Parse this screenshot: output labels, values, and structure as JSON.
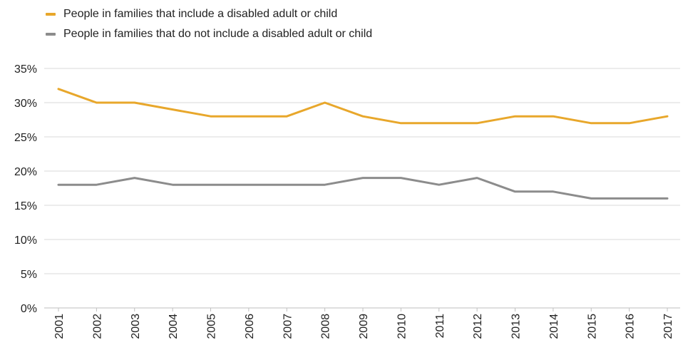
{
  "chart_data": {
    "type": "line",
    "title": "",
    "xlabel": "",
    "ylabel": "",
    "x": [
      "2001",
      "2002",
      "2003",
      "2004",
      "2005",
      "2006",
      "2007",
      "2008",
      "2009",
      "2010",
      "2011",
      "2012",
      "2013",
      "2014",
      "2015",
      "2016",
      "2017"
    ],
    "ylim": [
      0,
      35
    ],
    "y_ticks": [
      "0%",
      "5%",
      "10%",
      "15%",
      "20%",
      "25%",
      "30%",
      "35%"
    ],
    "y_tick_values": [
      0,
      5,
      10,
      15,
      20,
      25,
      30,
      35
    ],
    "grid": "horizontal",
    "legend_position": "top-left",
    "series": [
      {
        "name": "People in families that include a disabled adult or child",
        "color": "#E8A72B",
        "values": [
          32,
          30,
          30,
          29,
          28,
          28,
          28,
          30,
          28,
          27,
          27,
          27,
          28,
          28,
          27,
          27,
          28
        ]
      },
      {
        "name": "People in families that do not include a disabled adult or child",
        "color": "#8C8C8C",
        "values": [
          18,
          18,
          19,
          18,
          18,
          18,
          18,
          18,
          19,
          19,
          18,
          19,
          17,
          17,
          16,
          16,
          16
        ]
      }
    ]
  }
}
